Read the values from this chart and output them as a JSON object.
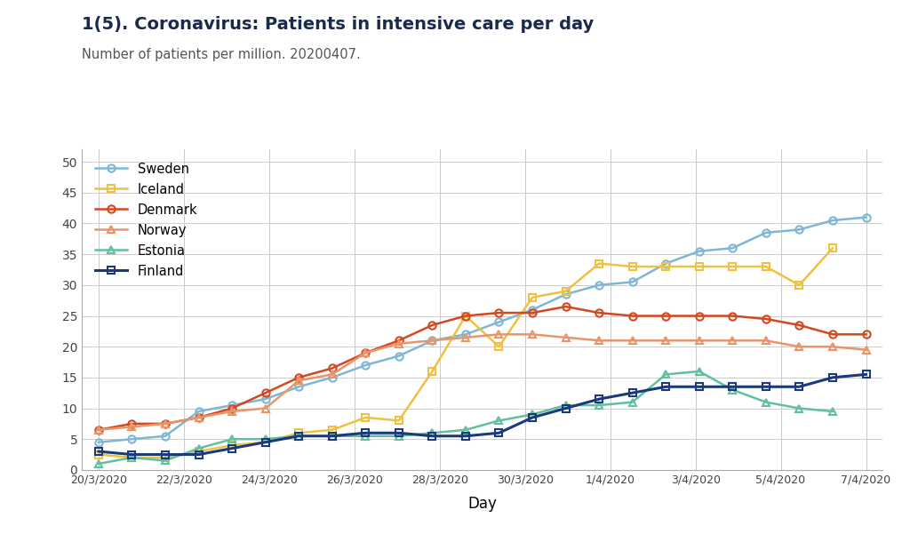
{
  "title": "1(5). Coronavirus: Patients in intensive care per day",
  "subtitle": "Number of patients per million. 20200407.",
  "xlabel": "Day",
  "ylabel": "",
  "ylim": [
    0,
    52
  ],
  "yticks": [
    0,
    5,
    10,
    15,
    20,
    25,
    30,
    35,
    40,
    45,
    50
  ],
  "background_color": "#ffffff",
  "plot_bg_color": "#ffffff",
  "x_labels": [
    "20/3/2020",
    "22/3/2020",
    "24/3/2020",
    "26/3/2020",
    "28/3/2020",
    "30/3/2020",
    "1/4/2020",
    "3/4/2020",
    "5/4/2020",
    "7/4/2020"
  ],
  "series": [
    {
      "name": "Sweden",
      "color": "#7eb6d4",
      "marker": "o",
      "markersize": 6,
      "fillstyle": "none",
      "linewidth": 1.8,
      "data": [
        4.5,
        5.0,
        5.5,
        9.5,
        10.5,
        11.5,
        13.5,
        15.0,
        17.0,
        18.5,
        21.0,
        22.0,
        24.0,
        26.0,
        28.5,
        30.0,
        30.5,
        33.5,
        35.5,
        36.0,
        38.5,
        39.0,
        40.5,
        41.0
      ]
    },
    {
      "name": "Iceland",
      "color": "#f0c040",
      "marker": "s",
      "markersize": 6,
      "fillstyle": "none",
      "linewidth": 1.8,
      "data": [
        2.5,
        2.0,
        2.0,
        3.0,
        4.0,
        4.5,
        6.0,
        6.5,
        8.5,
        8.0,
        16.0,
        25.0,
        20.0,
        28.0,
        29.0,
        33.5,
        33.0,
        33.0,
        33.0,
        33.0,
        33.0,
        30.0,
        36.0,
        null
      ]
    },
    {
      "name": "Denmark",
      "color": "#d44820",
      "marker": "o",
      "markersize": 6,
      "fillstyle": "none",
      "linewidth": 1.8,
      "data": [
        6.5,
        7.5,
        7.5,
        8.5,
        10.0,
        12.5,
        15.0,
        16.5,
        19.0,
        21.0,
        23.5,
        25.0,
        25.5,
        25.5,
        26.5,
        25.5,
        25.0,
        25.0,
        25.0,
        25.0,
        24.5,
        23.5,
        22.0,
        22.0
      ]
    },
    {
      "name": "Norway",
      "color": "#e8956a",
      "marker": "^",
      "markersize": 6,
      "fillstyle": "none",
      "linewidth": 1.8,
      "data": [
        6.5,
        7.0,
        7.5,
        8.5,
        9.5,
        10.0,
        14.5,
        15.5,
        19.0,
        20.5,
        21.0,
        21.5,
        22.0,
        22.0,
        21.5,
        21.0,
        21.0,
        21.0,
        21.0,
        21.0,
        21.0,
        20.0,
        20.0,
        19.5
      ]
    },
    {
      "name": "Estonia",
      "color": "#60c0a0",
      "marker": "^",
      "markersize": 6,
      "fillstyle": "none",
      "linewidth": 1.8,
      "data": [
        1.0,
        2.0,
        1.5,
        3.5,
        5.0,
        5.0,
        5.5,
        5.5,
        5.5,
        5.5,
        6.0,
        6.5,
        8.0,
        9.0,
        10.5,
        10.5,
        11.0,
        15.5,
        16.0,
        13.0,
        11.0,
        10.0,
        9.5,
        null
      ]
    },
    {
      "name": "Finland",
      "color": "#1a3a7a",
      "marker": "s",
      "markersize": 6,
      "fillstyle": "none",
      "linewidth": 2.2,
      "data": [
        3.0,
        2.5,
        2.5,
        2.5,
        3.5,
        4.5,
        5.5,
        5.5,
        6.0,
        6.0,
        5.5,
        5.5,
        6.0,
        8.5,
        10.0,
        11.5,
        12.5,
        13.5,
        13.5,
        13.5,
        13.5,
        13.5,
        15.0,
        15.5
      ]
    }
  ]
}
